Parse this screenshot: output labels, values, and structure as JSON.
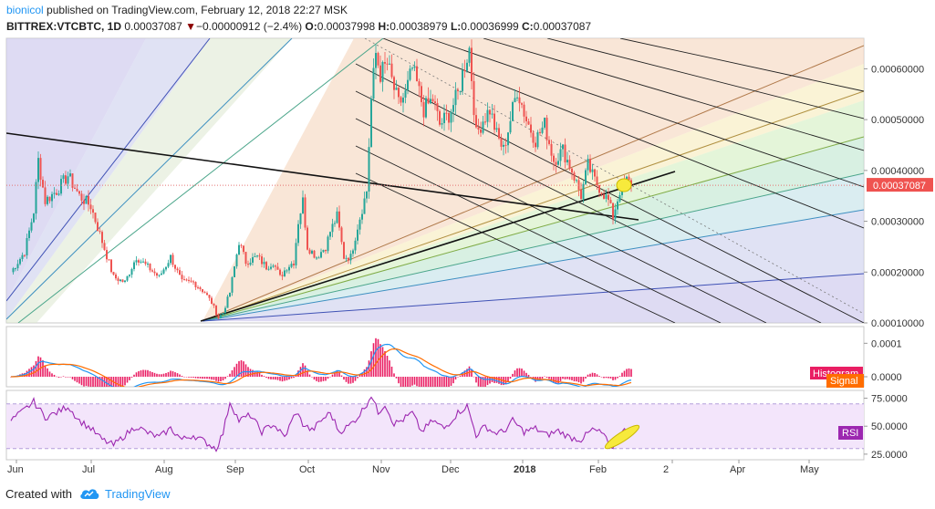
{
  "header": {
    "author": "bionicol",
    "published_text": "published on TradingView.com, February 12, 2018 22:27 MSK",
    "symbol": "BITTREX:VTCBTC, 1D",
    "last": "0.00037087",
    "change": "−0.00000912 (−2.4%)",
    "o_label": "O:",
    "o_value": "0.00037998",
    "h_label": "H:",
    "h_value": "0.00038979",
    "l_label": "L:",
    "l_value": "0.00036999",
    "c_label": "C:",
    "c_value": "0.00037087"
  },
  "footer": {
    "created_with": "Created with",
    "brand": "TradingView"
  },
  "colors": {
    "up": "#26a69a",
    "down": "#ef5350",
    "macd": "#2196f3",
    "signal": "#ff6d00",
    "hist": "#e91e63",
    "rsi": "#9c27b0",
    "rsi_bg": "#f3e5fb",
    "price_line": "#e57373"
  },
  "chart_data": {
    "type": "candlestick",
    "x_axis_labels": [
      "Jun",
      "Jul",
      "Aug",
      "Sep",
      "Oct",
      "Nov",
      "Dec",
      "2018",
      "Feb",
      "2",
      "Apr",
      "May"
    ],
    "price_axis": {
      "ticks": [
        "0.00060000",
        "0.00050000",
        "0.00040000",
        "0.00030000",
        "0.00020000",
        "0.00010000"
      ],
      "tick_values": [
        0.0006,
        0.0005,
        0.0004,
        0.0003,
        0.0002,
        0.0001
      ],
      "range": [
        0.0001,
        0.00066
      ],
      "current_price_label": "0.00037087",
      "current_price": 0.00037087
    },
    "macd_axis": {
      "ticks": [
        "0.0001",
        "0.0000"
      ],
      "tick_values": [
        0.0001,
        0
      ],
      "range": [
        -3e-05,
        0.00015
      ]
    },
    "macd_labels": {
      "histogram": "Histogram",
      "signal": "Signal"
    },
    "rsi_axis": {
      "ticks": [
        "75.0000",
        "50.0000",
        "25.0000"
      ],
      "tick_values": [
        75,
        50,
        25
      ],
      "range": [
        20,
        82
      ]
    },
    "rsi_label": "RSI",
    "price_key_points": [
      [
        0,
        0.0002
      ],
      [
        6,
        0.00024
      ],
      [
        10,
        0.00032
      ],
      [
        12,
        0.00042
      ],
      [
        15,
        0.00034
      ],
      [
        20,
        0.00036
      ],
      [
        25,
        0.00039
      ],
      [
        30,
        0.00035
      ],
      [
        35,
        0.00033
      ],
      [
        40,
        0.00026
      ],
      [
        45,
        0.00019
      ],
      [
        50,
        0.00018
      ],
      [
        55,
        0.00023
      ],
      [
        60,
        0.00021
      ],
      [
        65,
        0.00019
      ],
      [
        70,
        0.00023
      ],
      [
        75,
        0.00018
      ],
      [
        80,
        0.00018
      ],
      [
        85,
        0.00016
      ],
      [
        88,
        0.00014
      ],
      [
        91,
        0.00011
      ],
      [
        93,
        0.00012
      ],
      [
        96,
        0.00016
      ],
      [
        100,
        0.00026
      ],
      [
        103,
        0.00022
      ],
      [
        108,
        0.00023
      ],
      [
        112,
        0.00021
      ],
      [
        115,
        0.00022
      ],
      [
        118,
        0.00019
      ],
      [
        121,
        0.00021
      ],
      [
        124,
        0.00022
      ],
      [
        126,
        0.0003
      ],
      [
        128,
        0.00034
      ],
      [
        130,
        0.00025
      ],
      [
        134,
        0.00023
      ],
      [
        138,
        0.00025
      ],
      [
        140,
        0.00028
      ],
      [
        143,
        0.00031
      ],
      [
        146,
        0.00023
      ],
      [
        149,
        0.00023
      ],
      [
        152,
        0.00029
      ],
      [
        156,
        0.00036
      ],
      [
        158,
        0.00054
      ],
      [
        160,
        0.00063
      ],
      [
        162,
        0.00059
      ],
      [
        165,
        0.00061
      ],
      [
        168,
        0.00056
      ],
      [
        170,
        0.00053
      ],
      [
        173,
        0.00055
      ],
      [
        176,
        0.0006
      ],
      [
        178,
        0.00057
      ],
      [
        181,
        0.00052
      ],
      [
        185,
        0.00054
      ],
      [
        188,
        0.00049
      ],
      [
        192,
        0.00051
      ],
      [
        196,
        0.00055
      ],
      [
        199,
        0.00061
      ],
      [
        201,
        0.00064
      ],
      [
        204,
        0.00047
      ],
      [
        207,
        0.0005
      ],
      [
        210,
        0.00052
      ],
      [
        213,
        0.00047
      ],
      [
        216,
        0.00044
      ],
      [
        219,
        0.0005
      ],
      [
        222,
        0.00056
      ],
      [
        226,
        0.0005
      ],
      [
        230,
        0.00046
      ],
      [
        234,
        0.00049
      ],
      [
        238,
        0.00042
      ],
      [
        242,
        0.00044
      ],
      [
        246,
        0.0004
      ],
      [
        250,
        0.00035
      ],
      [
        253,
        0.00041
      ],
      [
        256,
        0.00038
      ],
      [
        259,
        0.00036
      ],
      [
        262,
        0.00034
      ],
      [
        264,
        0.00031
      ],
      [
        267,
        0.00036
      ],
      [
        270,
        0.00038
      ],
      [
        272,
        0.00037087
      ]
    ],
    "rsi_key_points": [
      [
        0,
        55
      ],
      [
        5,
        63
      ],
      [
        10,
        72
      ],
      [
        15,
        58
      ],
      [
        20,
        62
      ],
      [
        25,
        68
      ],
      [
        30,
        55
      ],
      [
        35,
        48
      ],
      [
        40,
        38
      ],
      [
        45,
        33
      ],
      [
        50,
        42
      ],
      [
        55,
        50
      ],
      [
        60,
        44
      ],
      [
        65,
        40
      ],
      [
        70,
        48
      ],
      [
        75,
        38
      ],
      [
        80,
        42
      ],
      [
        85,
        36
      ],
      [
        90,
        30
      ],
      [
        93,
        44
      ],
      [
        96,
        72
      ],
      [
        100,
        55
      ],
      [
        105,
        60
      ],
      [
        110,
        45
      ],
      [
        115,
        52
      ],
      [
        120,
        40
      ],
      [
        125,
        63
      ],
      [
        128,
        52
      ],
      [
        132,
        46
      ],
      [
        136,
        55
      ],
      [
        140,
        62
      ],
      [
        144,
        45
      ],
      [
        148,
        50
      ],
      [
        152,
        58
      ],
      [
        156,
        70
      ],
      [
        158,
        78
      ],
      [
        161,
        62
      ],
      [
        164,
        70
      ],
      [
        168,
        52
      ],
      [
        172,
        56
      ],
      [
        176,
        62
      ],
      [
        180,
        45
      ],
      [
        185,
        55
      ],
      [
        190,
        48
      ],
      [
        196,
        62
      ],
      [
        200,
        68
      ],
      [
        204,
        42
      ],
      [
        208,
        50
      ],
      [
        212,
        44
      ],
      [
        216,
        45
      ],
      [
        220,
        55
      ],
      [
        225,
        45
      ],
      [
        230,
        48
      ],
      [
        235,
        42
      ],
      [
        240,
        46
      ],
      [
        245,
        40
      ],
      [
        250,
        38
      ],
      [
        255,
        47
      ],
      [
        260,
        43
      ],
      [
        263,
        28
      ],
      [
        266,
        40
      ],
      [
        270,
        48
      ],
      [
        272,
        47
      ]
    ]
  }
}
